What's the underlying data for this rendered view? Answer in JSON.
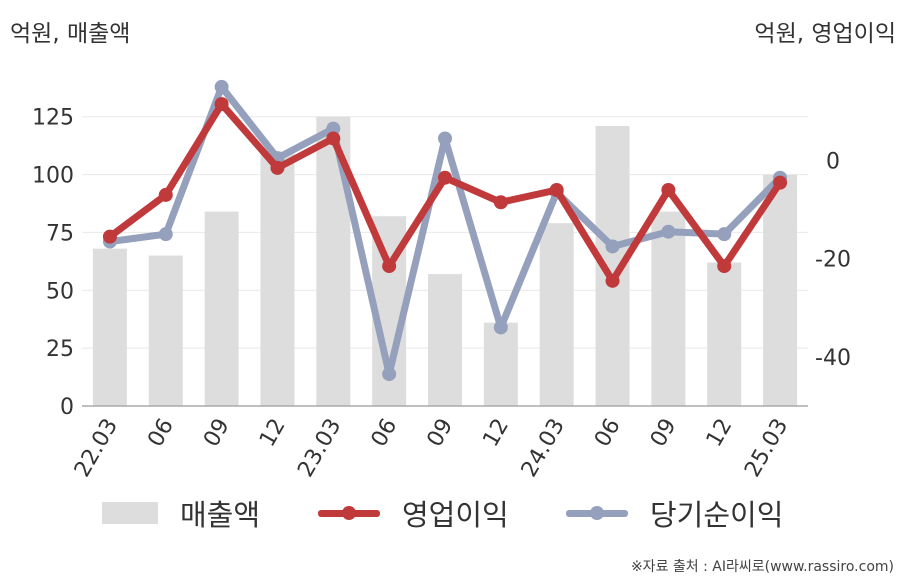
{
  "chart_data": {
    "type": "bar+line",
    "categories": [
      "22.03",
      "06",
      "09",
      "12",
      "23.03",
      "06",
      "09",
      "12",
      "24.03",
      "06",
      "09",
      "12",
      "25.03"
    ],
    "left_axis": {
      "label": "억원, 매출액",
      "ylim": [
        0,
        140
      ],
      "ticks": [
        0,
        25,
        50,
        75,
        100,
        125
      ]
    },
    "right_axis": {
      "label": "억원, 영업이익",
      "ylim": [
        -50,
        16
      ],
      "ticks": [
        -40,
        -20,
        0
      ]
    },
    "series": [
      {
        "name": "매출액",
        "type": "bar",
        "axis": "left",
        "color": "#dddddd",
        "values": [
          68,
          65,
          84,
          110,
          125,
          82,
          57,
          36,
          79,
          121,
          84,
          62,
          100
        ]
      },
      {
        "name": "영업이익",
        "type": "line",
        "axis": "right",
        "color": "#c0393b",
        "values": [
          -15.5,
          -7,
          11.5,
          -1.5,
          4.5,
          -21.5,
          -3.5,
          -8.5,
          -6,
          -24.5,
          -6,
          -21.5,
          -4.5
        ]
      },
      {
        "name": "당기순이익",
        "type": "line",
        "axis": "right",
        "color": "#94a0bc",
        "values": [
          -16.5,
          -15,
          15,
          0.5,
          6.5,
          -43.5,
          4.5,
          -34,
          -6.5,
          -17.5,
          -14.5,
          -15,
          -3.5
        ]
      }
    ],
    "grid": true,
    "legend_position": "bottom"
  },
  "source": "※자료 출처 : AI라씨로(www.rassiro.com)"
}
